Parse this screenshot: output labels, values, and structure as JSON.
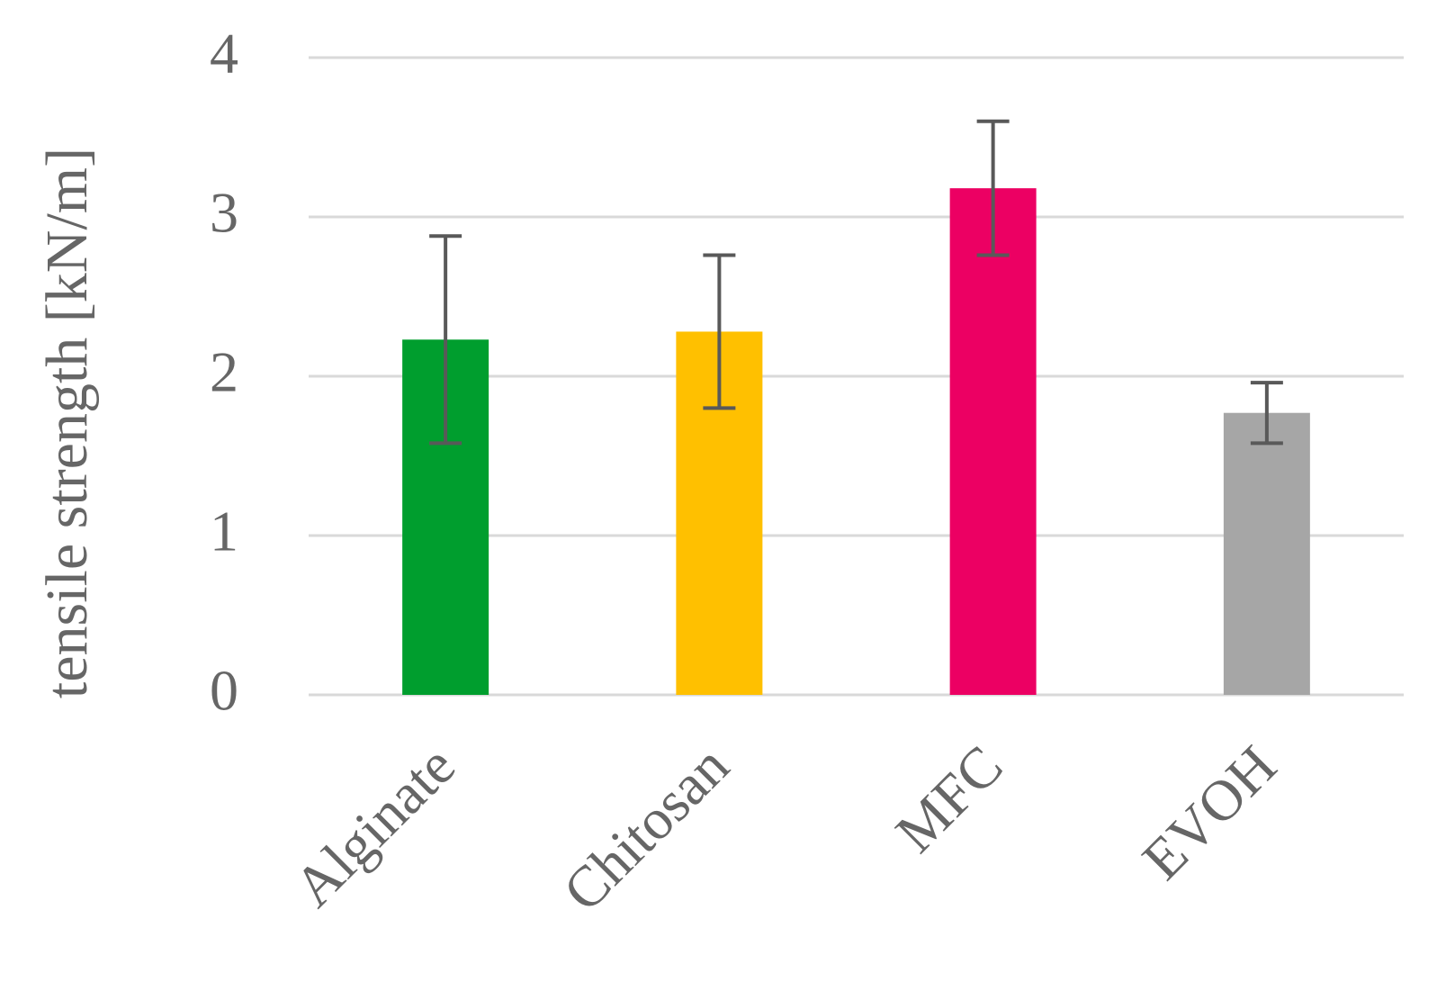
{
  "chart_data": {
    "type": "bar",
    "ylabel": "tensile strength [kN/m]",
    "xlabel": "",
    "ylim": [
      0,
      4
    ],
    "yticks": [
      0,
      1,
      2,
      3,
      4
    ],
    "grid": true,
    "categories": [
      "Alginate",
      "Chitosan",
      "MFC",
      "EVOH"
    ],
    "values": [
      2.23,
      2.28,
      3.18,
      1.77
    ],
    "error": [
      0.65,
      0.48,
      0.42,
      0.19
    ],
    "colors": [
      "#009e2e",
      "#ffc000",
      "#ec0063",
      "#a6a6a6"
    ],
    "text_color": "#666666",
    "errorbar_color": "#595959",
    "grid_color": "#d9d9d9"
  }
}
